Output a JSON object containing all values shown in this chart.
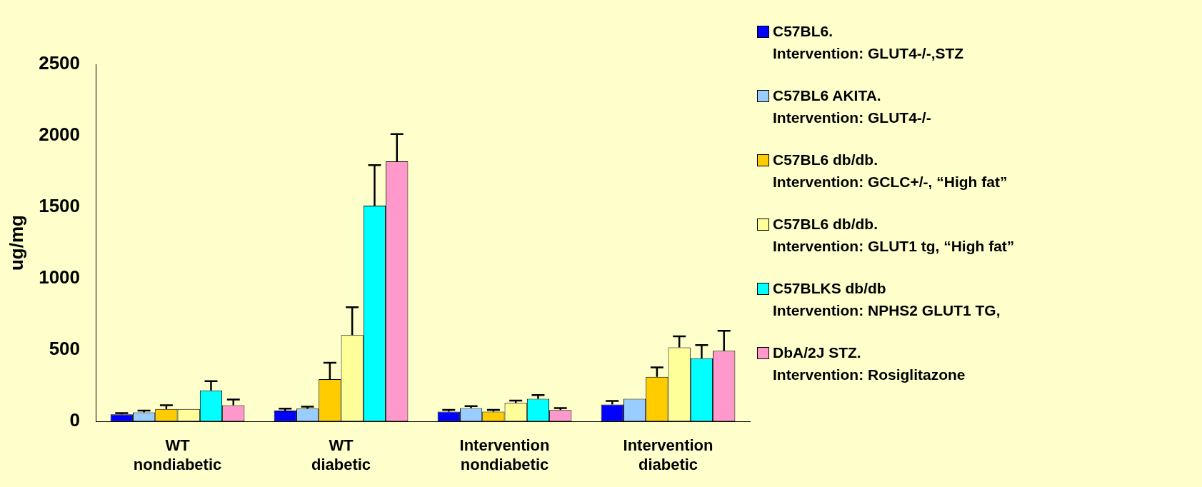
{
  "chart_data": {
    "type": "bar",
    "ylabel": "ug/mg",
    "categories": [
      "WT\nnondiabetic",
      "WT\ndiabetic",
      "Intervention\nnondiabetic",
      "Intervention\ndiabetic"
    ],
    "ylim": [
      0,
      2500
    ],
    "yticks": [
      0,
      500,
      1000,
      1500,
      2000,
      2500
    ],
    "grid": false,
    "legend": "right",
    "series": [
      {
        "name": "C57BL6.\nIntervention: GLUT4-/-,STZ",
        "color": "#0000ff",
        "values": [
          50,
          76,
          68,
          118
        ],
        "errors": [
          [
            50,
            58
          ],
          [
            76,
            90
          ],
          [
            68,
            81
          ],
          [
            118,
            144
          ]
        ]
      },
      {
        "name": "C57BL6 AKITA.\nIntervention: GLUT4-/-",
        "color": "#99ccff",
        "values": [
          64,
          90,
          94,
          158
        ],
        "errors": [
          [
            64,
            76
          ],
          [
            90,
            104
          ],
          [
            94,
            107
          ],
          null
        ]
      },
      {
        "name": "C57BL6 db/db.\nIntervention: GCLC+/-, “High fat”",
        "color": "#ffcc00",
        "values": [
          87,
          296,
          68,
          312
        ],
        "errors": [
          [
            87,
            114
          ],
          [
            296,
            411
          ],
          [
            68,
            81
          ],
          [
            312,
            378
          ]
        ]
      },
      {
        "name": "C57BL6 db/db.\nIntervention: GLUT1 tg, “High fat”",
        "color": "#ffff99",
        "values": [
          87,
          605,
          130,
          518
        ],
        "errors": [
          null,
          [
            605,
            800
          ],
          [
            130,
            146
          ],
          [
            518,
            596
          ]
        ]
      },
      {
        "name": "C57BLKS db/db\nIntervention: NPHS2 GLUT1 TG,",
        "color": "#00ffff",
        "values": [
          217,
          1510,
          158,
          442
        ],
        "errors": [
          [
            217,
            282
          ],
          [
            1510,
            1794
          ],
          [
            158,
            185
          ],
          [
            442,
            534
          ]
        ]
      },
      {
        "name": "DbA/2J STZ.\nIntervention: Rosiglitazone",
        "color": "#ff99cc",
        "values": [
          114,
          1820,
          80,
          494
        ],
        "errors": [
          [
            114,
            154
          ],
          [
            1820,
            2012
          ],
          [
            80,
            94
          ],
          [
            494,
            634
          ]
        ]
      }
    ]
  }
}
